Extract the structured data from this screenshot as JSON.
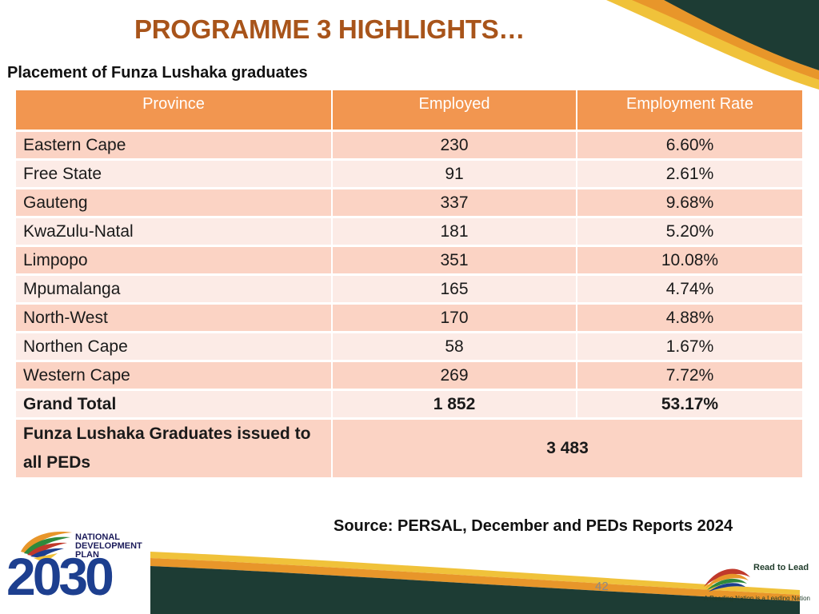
{
  "slide": {
    "title": "PROGRAMME 3 HIGHLIGHTS…",
    "subtitle": "Placement of Funza Lushaka graduates",
    "source": "Source: PERSAL, December and PEDs Reports 2024",
    "page_number": "42"
  },
  "table": {
    "headers": [
      "Province",
      "Employed",
      "Employment Rate"
    ],
    "rows": [
      [
        "Eastern Cape",
        "230",
        "6.60%"
      ],
      [
        "Free State",
        "91",
        "2.61%"
      ],
      [
        "Gauteng",
        "337",
        "9.68%"
      ],
      [
        "KwaZulu-Natal",
        "181",
        "5.20%"
      ],
      [
        "Limpopo",
        "351",
        "10.08%"
      ],
      [
        "Mpumalanga",
        "165",
        "4.74%"
      ],
      [
        "North-West",
        "170",
        "4.88%"
      ],
      [
        "Northen Cape",
        "58",
        "1.67%"
      ],
      [
        "Western Cape",
        "269",
        "7.72%"
      ]
    ],
    "total": [
      "Grand Total",
      "1 852",
      "53.17%"
    ],
    "issued": {
      "label": "Funza Lushaka Graduates issued to all PEDs",
      "value": "3 483"
    }
  },
  "logos": {
    "ndp": {
      "line1": "NATIONAL",
      "line2": "DEVELOPMENT",
      "line3": "PLAN",
      "year": "2030"
    },
    "read_to_lead": {
      "name": "Read to Lead",
      "tagline": "A Reading Nation is a Leading Nation"
    }
  },
  "colors": {
    "title": "#a8541a",
    "header_fill": "#f29650",
    "row_dark": "#fbd3c4",
    "row_light": "#fcebe6",
    "band_dark": "#1d3c34",
    "band_orange": "#e8962a",
    "band_gold": "#f0c23a"
  }
}
